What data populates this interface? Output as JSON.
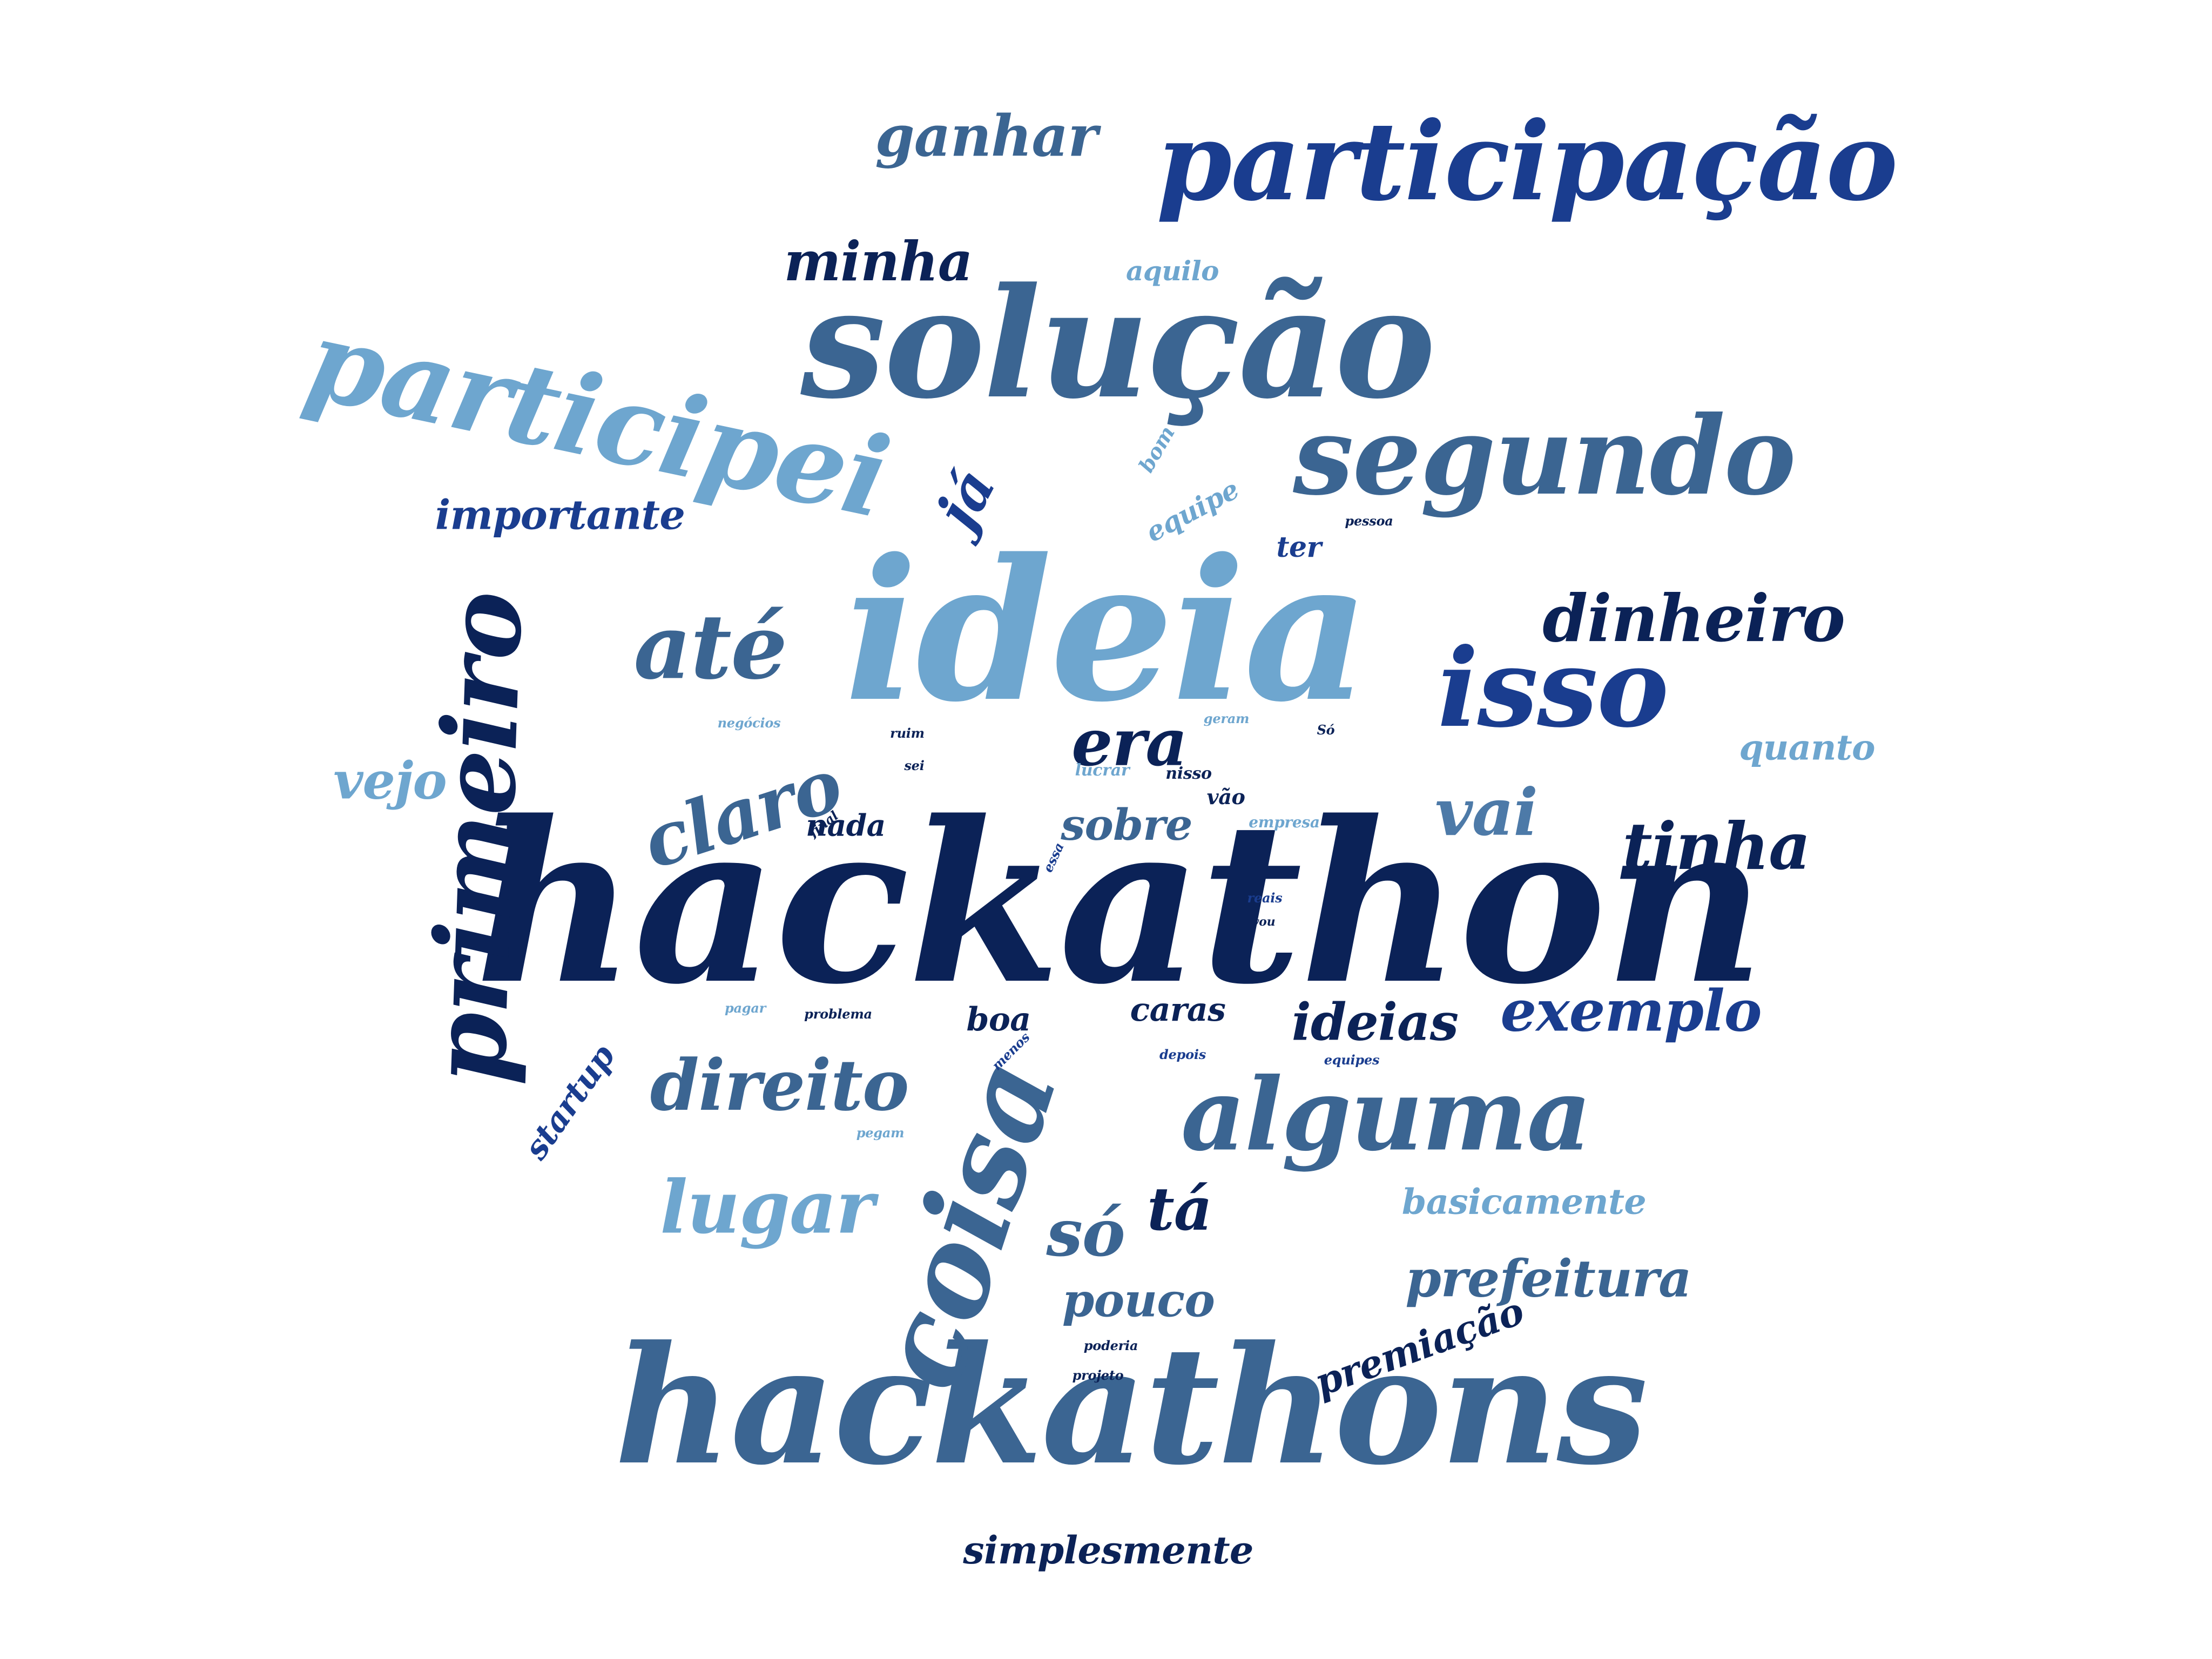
{
  "word_cloud": {
    "palette": {
      "navy": "#0b2257",
      "royal": "#1a3d8f",
      "steel": "#3b6592",
      "medium": "#4d7aa8",
      "light": "#6ea6cf",
      "background": "#ffffff"
    },
    "words": [
      {
        "text": "hackathon",
        "weight": 100,
        "color": "#0b2257",
        "orientation": "horizontal"
      },
      {
        "text": "ideia",
        "weight": 82,
        "color": "#6ea6cf",
        "orientation": "horizontal"
      },
      {
        "text": "hackathons",
        "weight": 70,
        "color": "#3b6592",
        "orientation": "horizontal"
      },
      {
        "text": "solução",
        "weight": 66,
        "color": "#3b6592",
        "orientation": "horizontal"
      },
      {
        "text": "coisa",
        "weight": 60,
        "color": "#3b6592",
        "orientation": "rotated"
      },
      {
        "text": "participação",
        "weight": 48,
        "color": "#1a3d8f",
        "orientation": "horizontal"
      },
      {
        "text": "participei",
        "weight": 48,
        "color": "#6ea6cf",
        "orientation": "rotated"
      },
      {
        "text": "segundo",
        "weight": 48,
        "color": "#3b6592",
        "orientation": "horizontal"
      },
      {
        "text": "primeiro",
        "weight": 48,
        "color": "#0b2257",
        "orientation": "vertical"
      },
      {
        "text": "isso",
        "weight": 48,
        "color": "#1a3d8f",
        "orientation": "horizontal"
      },
      {
        "text": "alguma",
        "weight": 44,
        "color": "#3b6592",
        "orientation": "horizontal"
      },
      {
        "text": "até",
        "weight": 40,
        "color": "#3b6592",
        "orientation": "horizontal"
      },
      {
        "text": "claro",
        "weight": 34,
        "color": "#3b6592",
        "orientation": "rotated"
      },
      {
        "text": "lugar",
        "weight": 34,
        "color": "#6ea6cf",
        "orientation": "horizontal"
      },
      {
        "text": "direito",
        "weight": 34,
        "color": "#3b6592",
        "orientation": "horizontal"
      },
      {
        "text": "dinheiro",
        "weight": 30,
        "color": "#0b2257",
        "orientation": "horizontal"
      },
      {
        "text": "tinha",
        "weight": 30,
        "color": "#0b2257",
        "orientation": "horizontal"
      },
      {
        "text": "ganhar",
        "weight": 26,
        "color": "#3b6592",
        "orientation": "horizontal"
      },
      {
        "text": "minha",
        "weight": 26,
        "color": "#0b2257",
        "orientation": "horizontal"
      },
      {
        "text": "era",
        "weight": 30,
        "color": "#0b2257",
        "orientation": "horizontal"
      },
      {
        "text": "vai",
        "weight": 30,
        "color": "#4d7aa8",
        "orientation": "horizontal"
      },
      {
        "text": "já",
        "weight": 30,
        "color": "#1a3d8f",
        "orientation": "rotated"
      },
      {
        "text": "exemplo",
        "weight": 28,
        "color": "#1a3d8f",
        "orientation": "horizontal"
      },
      {
        "text": "ideias",
        "weight": 26,
        "color": "#0b2257",
        "orientation": "horizontal"
      },
      {
        "text": "prefeitura",
        "weight": 26,
        "color": "#3b6592",
        "orientation": "horizontal"
      },
      {
        "text": "só",
        "weight": 30,
        "color": "#3b6592",
        "orientation": "horizontal"
      },
      {
        "text": "tá",
        "weight": 30,
        "color": "#0b2257",
        "orientation": "horizontal"
      },
      {
        "text": "pouco",
        "weight": 24,
        "color": "#3b6592",
        "orientation": "horizontal"
      },
      {
        "text": "sobre",
        "weight": 22,
        "color": "#3b6592",
        "orientation": "horizontal"
      },
      {
        "text": "vejo",
        "weight": 22,
        "color": "#6ea6cf",
        "orientation": "horizontal"
      },
      {
        "text": "importante",
        "weight": 20,
        "color": "#1a3d8f",
        "orientation": "horizontal"
      },
      {
        "text": "premiação",
        "weight": 20,
        "color": "#0b2257",
        "orientation": "rotated"
      },
      {
        "text": "basicamente",
        "weight": 18,
        "color": "#6ea6cf",
        "orientation": "horizontal"
      },
      {
        "text": "simplesmente",
        "weight": 18,
        "color": "#0b2257",
        "orientation": "horizontal"
      },
      {
        "text": "quanto",
        "weight": 16,
        "color": "#6ea6cf",
        "orientation": "horizontal"
      },
      {
        "text": "startup",
        "weight": 16,
        "color": "#1a3d8f",
        "orientation": "rotated"
      },
      {
        "text": "boa",
        "weight": 16,
        "color": "#0b2257",
        "orientation": "horizontal"
      },
      {
        "text": "caras",
        "weight": 16,
        "color": "#0b2257",
        "orientation": "horizontal"
      },
      {
        "text": "nada",
        "weight": 16,
        "color": "#0b2257",
        "orientation": "horizontal"
      },
      {
        "text": "aquilo",
        "weight": 14,
        "color": "#6ea6cf",
        "orientation": "horizontal"
      },
      {
        "text": "equipe",
        "weight": 14,
        "color": "#6ea6cf",
        "orientation": "rotated"
      },
      {
        "text": "ter",
        "weight": 14,
        "color": "#1a3d8f",
        "orientation": "horizontal"
      },
      {
        "text": "vão",
        "weight": 12,
        "color": "#0b2257",
        "orientation": "horizontal"
      },
      {
        "text": "bom",
        "weight": 10,
        "color": "#6ea6cf",
        "orientation": "rotated"
      },
      {
        "text": "pessoa",
        "weight": 7,
        "color": "#0b2257",
        "orientation": "horizontal"
      },
      {
        "text": "negócios",
        "weight": 7,
        "color": "#6ea6cf",
        "orientation": "horizontal"
      },
      {
        "text": "ruim",
        "weight": 7,
        "color": "#0b2257",
        "orientation": "horizontal"
      },
      {
        "text": "sei",
        "weight": 7,
        "color": "#0b2257",
        "orientation": "horizontal"
      },
      {
        "text": "lucrar",
        "weight": 8,
        "color": "#6ea6cf",
        "orientation": "horizontal"
      },
      {
        "text": "nisso",
        "weight": 8,
        "color": "#0b2257",
        "orientation": "horizontal"
      },
      {
        "text": "geram",
        "weight": 7,
        "color": "#6ea6cf",
        "orientation": "horizontal"
      },
      {
        "text": "Só",
        "weight": 7,
        "color": "#0b2257",
        "orientation": "horizontal"
      },
      {
        "text": "empresa",
        "weight": 8,
        "color": "#6ea6cf",
        "orientation": "horizontal"
      },
      {
        "text": "final",
        "weight": 7,
        "color": "#0b2257",
        "orientation": "rotated"
      },
      {
        "text": "essa",
        "weight": 7,
        "color": "#1a3d8f",
        "orientation": "rotated"
      },
      {
        "text": "reais",
        "weight": 7,
        "color": "#1a3d8f",
        "orientation": "horizontal"
      },
      {
        "text": "vou",
        "weight": 7,
        "color": "#0b2257",
        "orientation": "horizontal"
      },
      {
        "text": "pagar",
        "weight": 7,
        "color": "#6ea6cf",
        "orientation": "horizontal"
      },
      {
        "text": "problema",
        "weight": 7,
        "color": "#0b2257",
        "orientation": "horizontal"
      },
      {
        "text": "menos",
        "weight": 7,
        "color": "#1a3d8f",
        "orientation": "rotated"
      },
      {
        "text": "depois",
        "weight": 7,
        "color": "#1a3d8f",
        "orientation": "horizontal"
      },
      {
        "text": "equipes",
        "weight": 7,
        "color": "#1a3d8f",
        "orientation": "horizontal"
      },
      {
        "text": "pegam",
        "weight": 7,
        "color": "#6ea6cf",
        "orientation": "horizontal"
      },
      {
        "text": "poderia",
        "weight": 7,
        "color": "#0b2257",
        "orientation": "horizontal"
      },
      {
        "text": "projeto",
        "weight": 7,
        "color": "#0b2257",
        "orientation": "horizontal"
      }
    ]
  }
}
